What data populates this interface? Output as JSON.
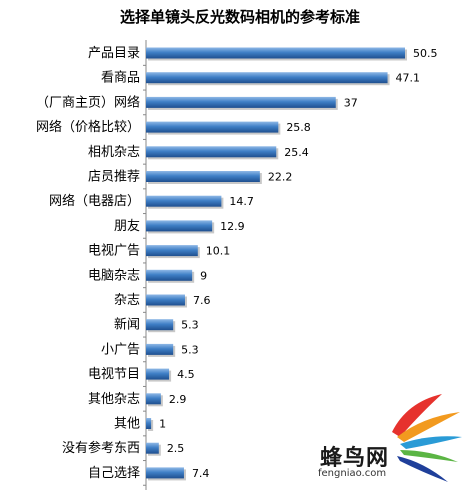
{
  "chart_data": {
    "type": "bar",
    "orientation": "horizontal",
    "title": "选择单镜头反光数码相机的参考标准",
    "categories": [
      "产品目录",
      "看商品",
      "（厂商主页）网络",
      "网络（价格比较）",
      "相机杂志",
      "店员推荐",
      "网络（电器店）",
      "朋友",
      "电视广告",
      "电脑杂志",
      "杂志",
      "新闻",
      "小广告",
      "电视节目",
      "其他杂志",
      "其他",
      "没有参考东西",
      "自己选择"
    ],
    "values": [
      50.5,
      47.1,
      37,
      25.8,
      25.4,
      22.2,
      14.7,
      12.9,
      10.1,
      9,
      7.6,
      5.3,
      5.3,
      4.5,
      2.9,
      1,
      2.5,
      7.4
    ],
    "value_labels": [
      "50.5",
      "47.1",
      "37",
      "25.8",
      "25.4",
      "22.2",
      "14.7",
      "12.9",
      "10.1",
      "9",
      "7.6",
      "5.3",
      "5.3",
      "4.5",
      "2.9",
      "1",
      "2.5",
      "7.4"
    ],
    "xlim": [
      0,
      51
    ],
    "grid": false,
    "bar_color": "#3f7fc6"
  },
  "watermark": {
    "text": "蜂鸟网",
    "url": "fengniao.com"
  }
}
